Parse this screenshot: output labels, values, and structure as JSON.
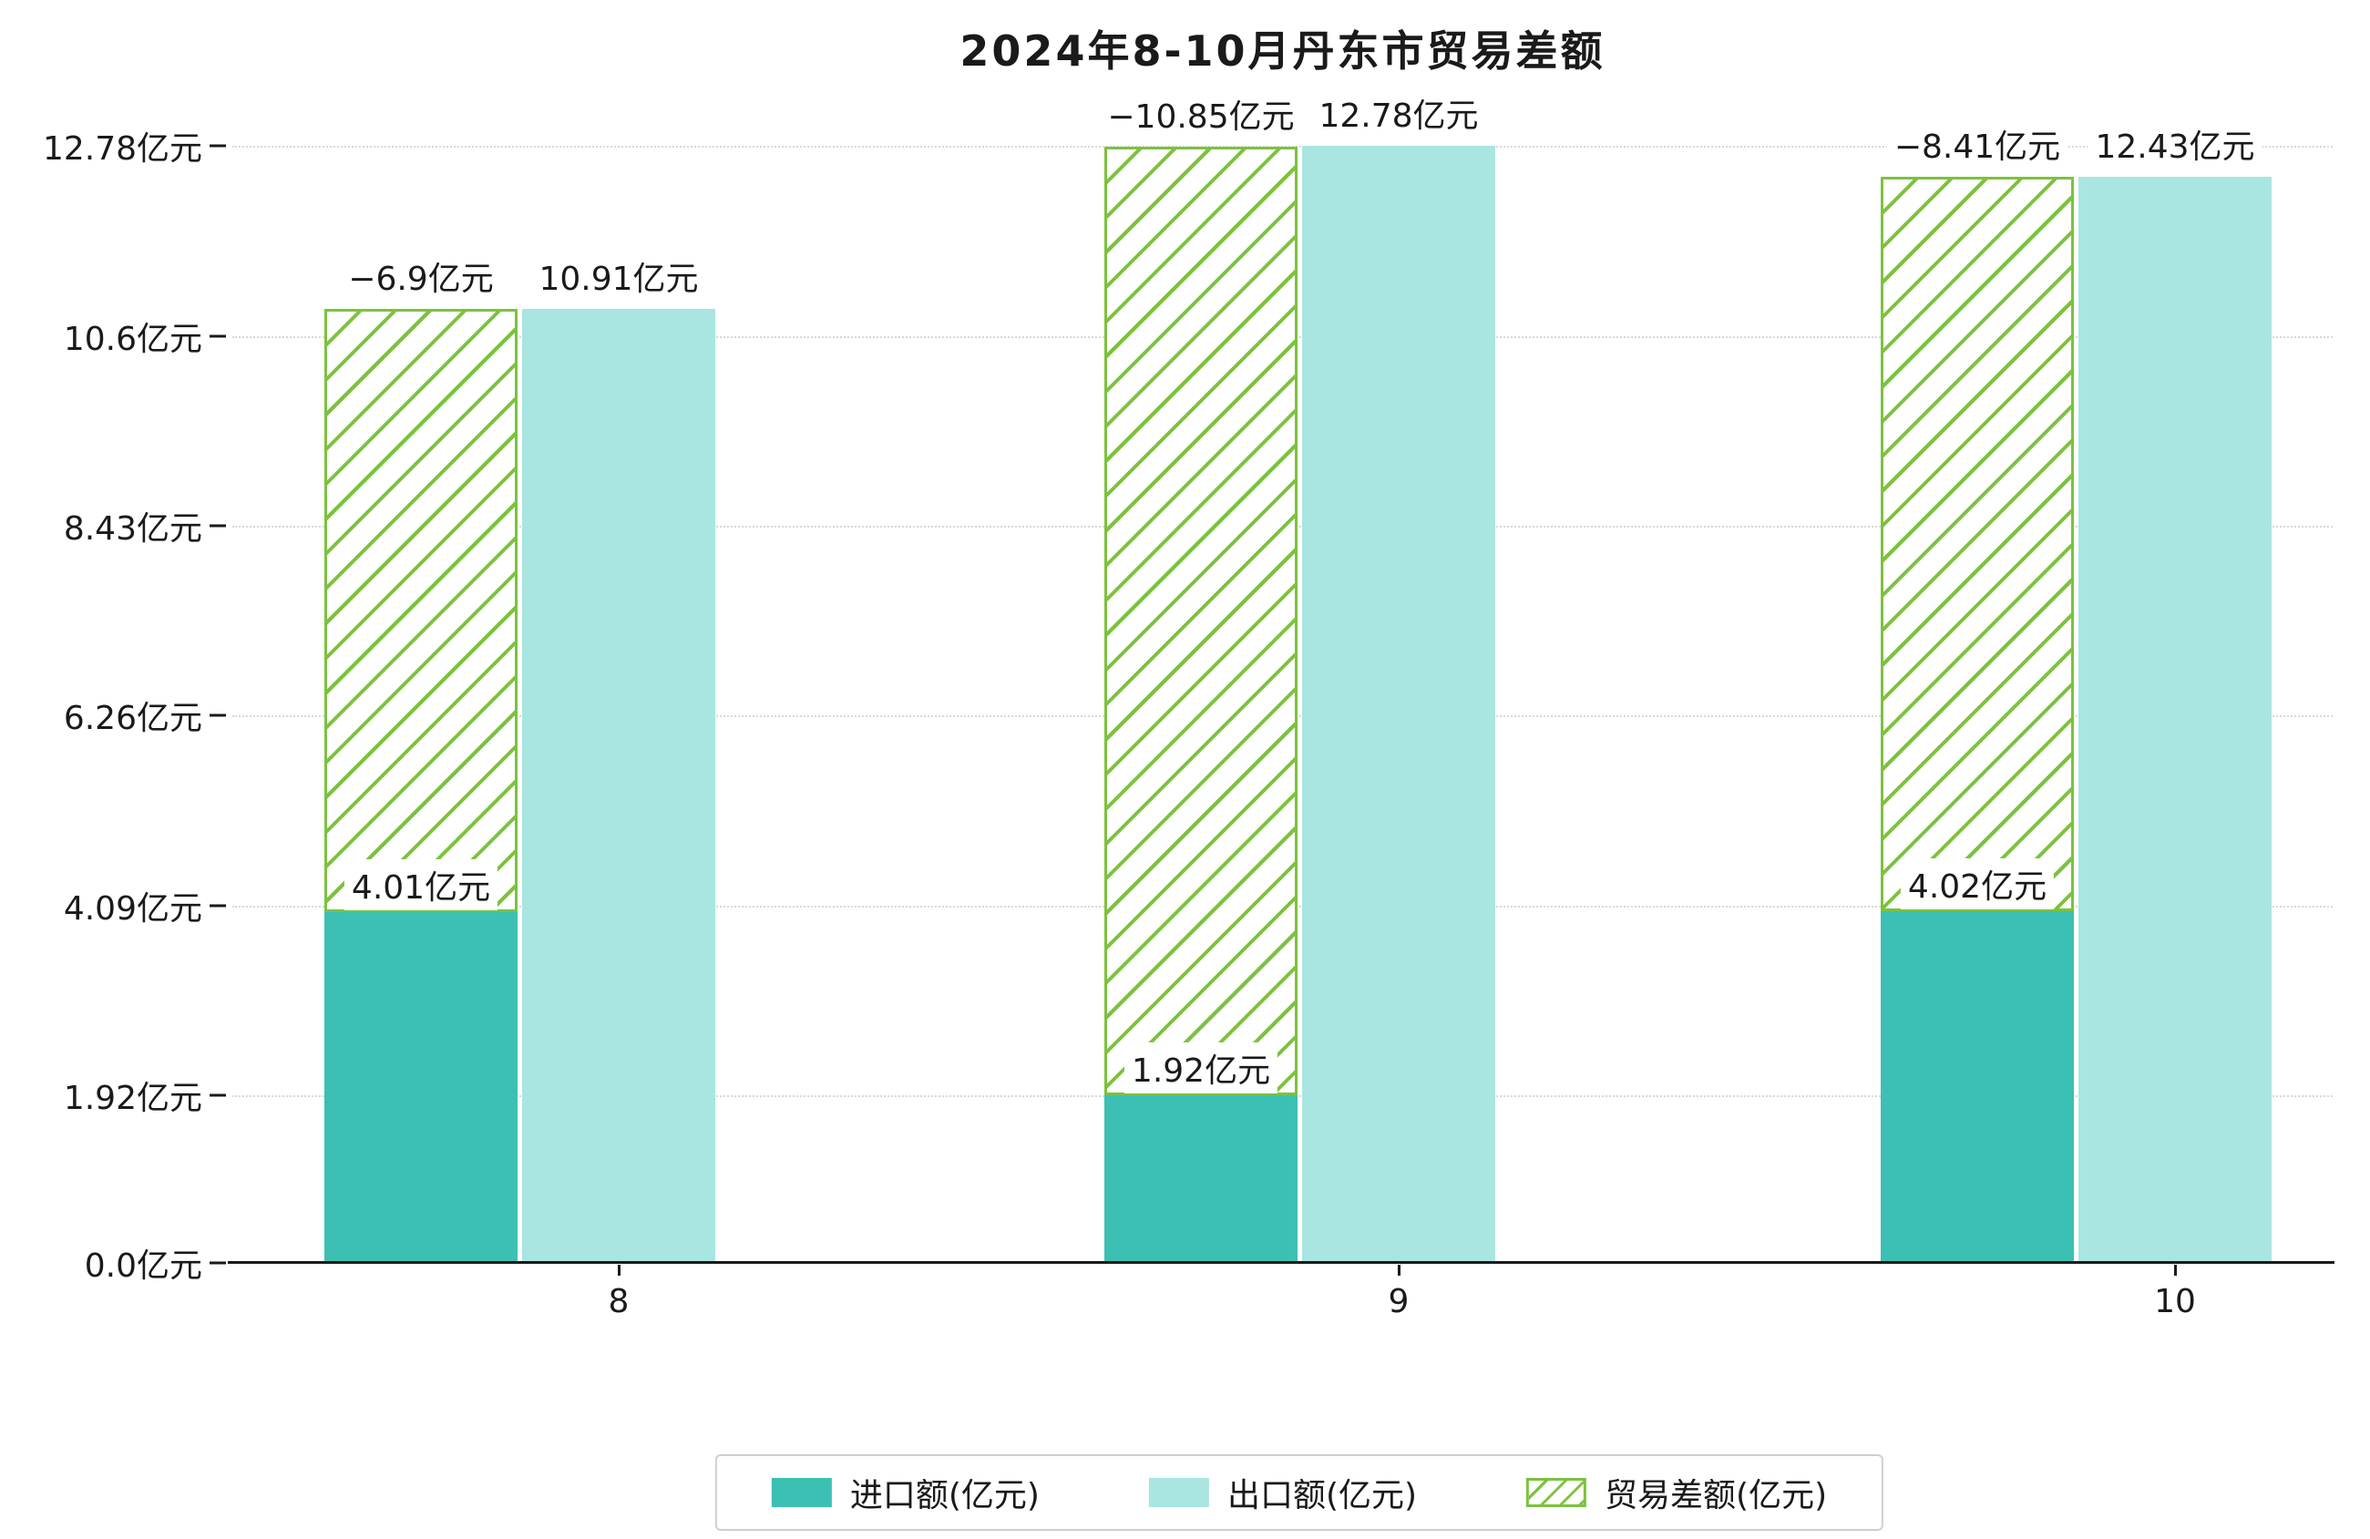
{
  "chart_data": {
    "type": "bar",
    "title": "2024年8-10月丹东市贸易差额",
    "categories": [
      "8",
      "9",
      "10"
    ],
    "series": [
      {
        "name": "进口额(亿元)",
        "role": "import",
        "color": "#3bc0b3",
        "values": [
          4.01,
          1.92,
          4.02
        ],
        "labels": [
          "4.01亿元",
          "1.92亿元",
          "4.02亿元"
        ]
      },
      {
        "name": "出口额(亿元)",
        "role": "export",
        "color": "#a9e5e1",
        "values": [
          10.91,
          12.78,
          12.43
        ],
        "labels": [
          "10.91亿元",
          "12.78亿元",
          "12.43亿元"
        ]
      },
      {
        "name": "贸易差额(亿元)",
        "role": "balance",
        "style": "hatched",
        "color": "#7cc23e",
        "values": [
          -6.9,
          -10.85,
          -8.41
        ],
        "labels": [
          "−6.9亿元",
          "−10.85亿元",
          "−8.41亿元"
        ]
      }
    ],
    "y_axis": {
      "tick_labels": [
        "0.0亿元",
        "1.92亿元",
        "4.09亿元",
        "6.26亿元",
        "8.43亿元",
        "10.6亿元",
        "12.78亿元"
      ],
      "tick_values": [
        0,
        1.92,
        4.09,
        6.26,
        8.43,
        10.6,
        12.78
      ]
    },
    "x_axis": {
      "tick_labels": [
        "8",
        "9",
        "10"
      ]
    },
    "xlabel": "",
    "ylabel": "",
    "ylim": [
      0,
      13.3
    ],
    "grid": "horizontal dotted",
    "legend_position": "bottom center"
  }
}
